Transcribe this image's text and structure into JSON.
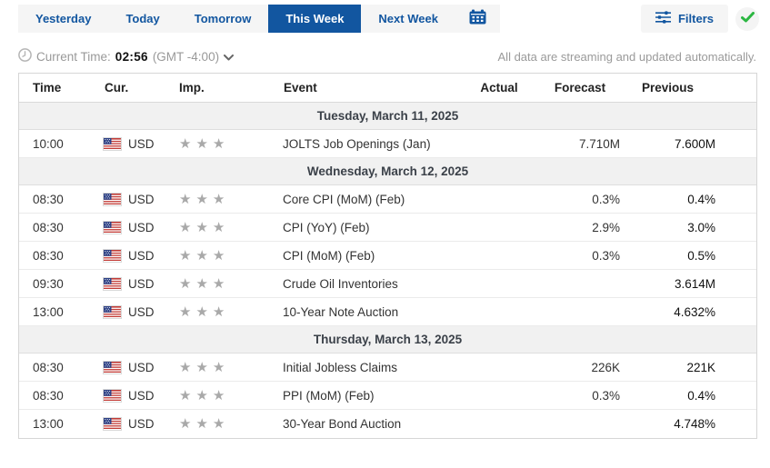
{
  "tabs": {
    "items": [
      {
        "label": "Yesterday"
      },
      {
        "label": "Today"
      },
      {
        "label": "Tomorrow"
      },
      {
        "label": "This Week"
      },
      {
        "label": "Next Week"
      }
    ],
    "active_index": 3
  },
  "toolbar": {
    "filters_label": "Filters"
  },
  "status": {
    "current_time_label": "Current Time:",
    "current_time": "02:56",
    "timezone": "(GMT -4:00)",
    "streaming_note": "All data are streaming and updated automatically."
  },
  "colors": {
    "accent_blue": "#1256a0",
    "success_green": "#2cb742",
    "star_gray": "#a9a9a9"
  },
  "table": {
    "columns": [
      "Time",
      "Cur.",
      "Imp.",
      "Event",
      "Actual",
      "Forecast",
      "Previous"
    ],
    "groups": [
      {
        "date": "Tuesday, March 11, 2025",
        "rows": [
          {
            "time": "10:00",
            "currency": "USD",
            "flag": "us-flag-icon",
            "importance": 3,
            "event": "JOLTS Job Openings (Jan)",
            "actual": "",
            "forecast": "7.710M",
            "previous": "7.600M"
          }
        ]
      },
      {
        "date": "Wednesday, March 12, 2025",
        "rows": [
          {
            "time": "08:30",
            "currency": "USD",
            "flag": "us-flag-icon",
            "importance": 3,
            "event": "Core CPI (MoM) (Feb)",
            "actual": "",
            "forecast": "0.3%",
            "previous": "0.4%"
          },
          {
            "time": "08:30",
            "currency": "USD",
            "flag": "us-flag-icon",
            "importance": 3,
            "event": "CPI (YoY) (Feb)",
            "actual": "",
            "forecast": "2.9%",
            "previous": "3.0%"
          },
          {
            "time": "08:30",
            "currency": "USD",
            "flag": "us-flag-icon",
            "importance": 3,
            "event": "CPI (MoM) (Feb)",
            "actual": "",
            "forecast": "0.3%",
            "previous": "0.5%"
          },
          {
            "time": "09:30",
            "currency": "USD",
            "flag": "us-flag-icon",
            "importance": 3,
            "event": "Crude Oil Inventories",
            "actual": "",
            "forecast": "",
            "previous": "3.614M"
          },
          {
            "time": "13:00",
            "currency": "USD",
            "flag": "us-flag-icon",
            "importance": 3,
            "event": "10-Year Note Auction",
            "actual": "",
            "forecast": "",
            "previous": "4.632%"
          }
        ]
      },
      {
        "date": "Thursday, March 13, 2025",
        "rows": [
          {
            "time": "08:30",
            "currency": "USD",
            "flag": "us-flag-icon",
            "importance": 3,
            "event": "Initial Jobless Claims",
            "actual": "",
            "forecast": "226K",
            "previous": "221K"
          },
          {
            "time": "08:30",
            "currency": "USD",
            "flag": "us-flag-icon",
            "importance": 3,
            "event": "PPI (MoM) (Feb)",
            "actual": "",
            "forecast": "0.3%",
            "previous": "0.4%"
          },
          {
            "time": "13:00",
            "currency": "USD",
            "flag": "us-flag-icon",
            "importance": 3,
            "event": "30-Year Bond Auction",
            "actual": "",
            "forecast": "",
            "previous": "4.748%"
          }
        ]
      }
    ]
  }
}
